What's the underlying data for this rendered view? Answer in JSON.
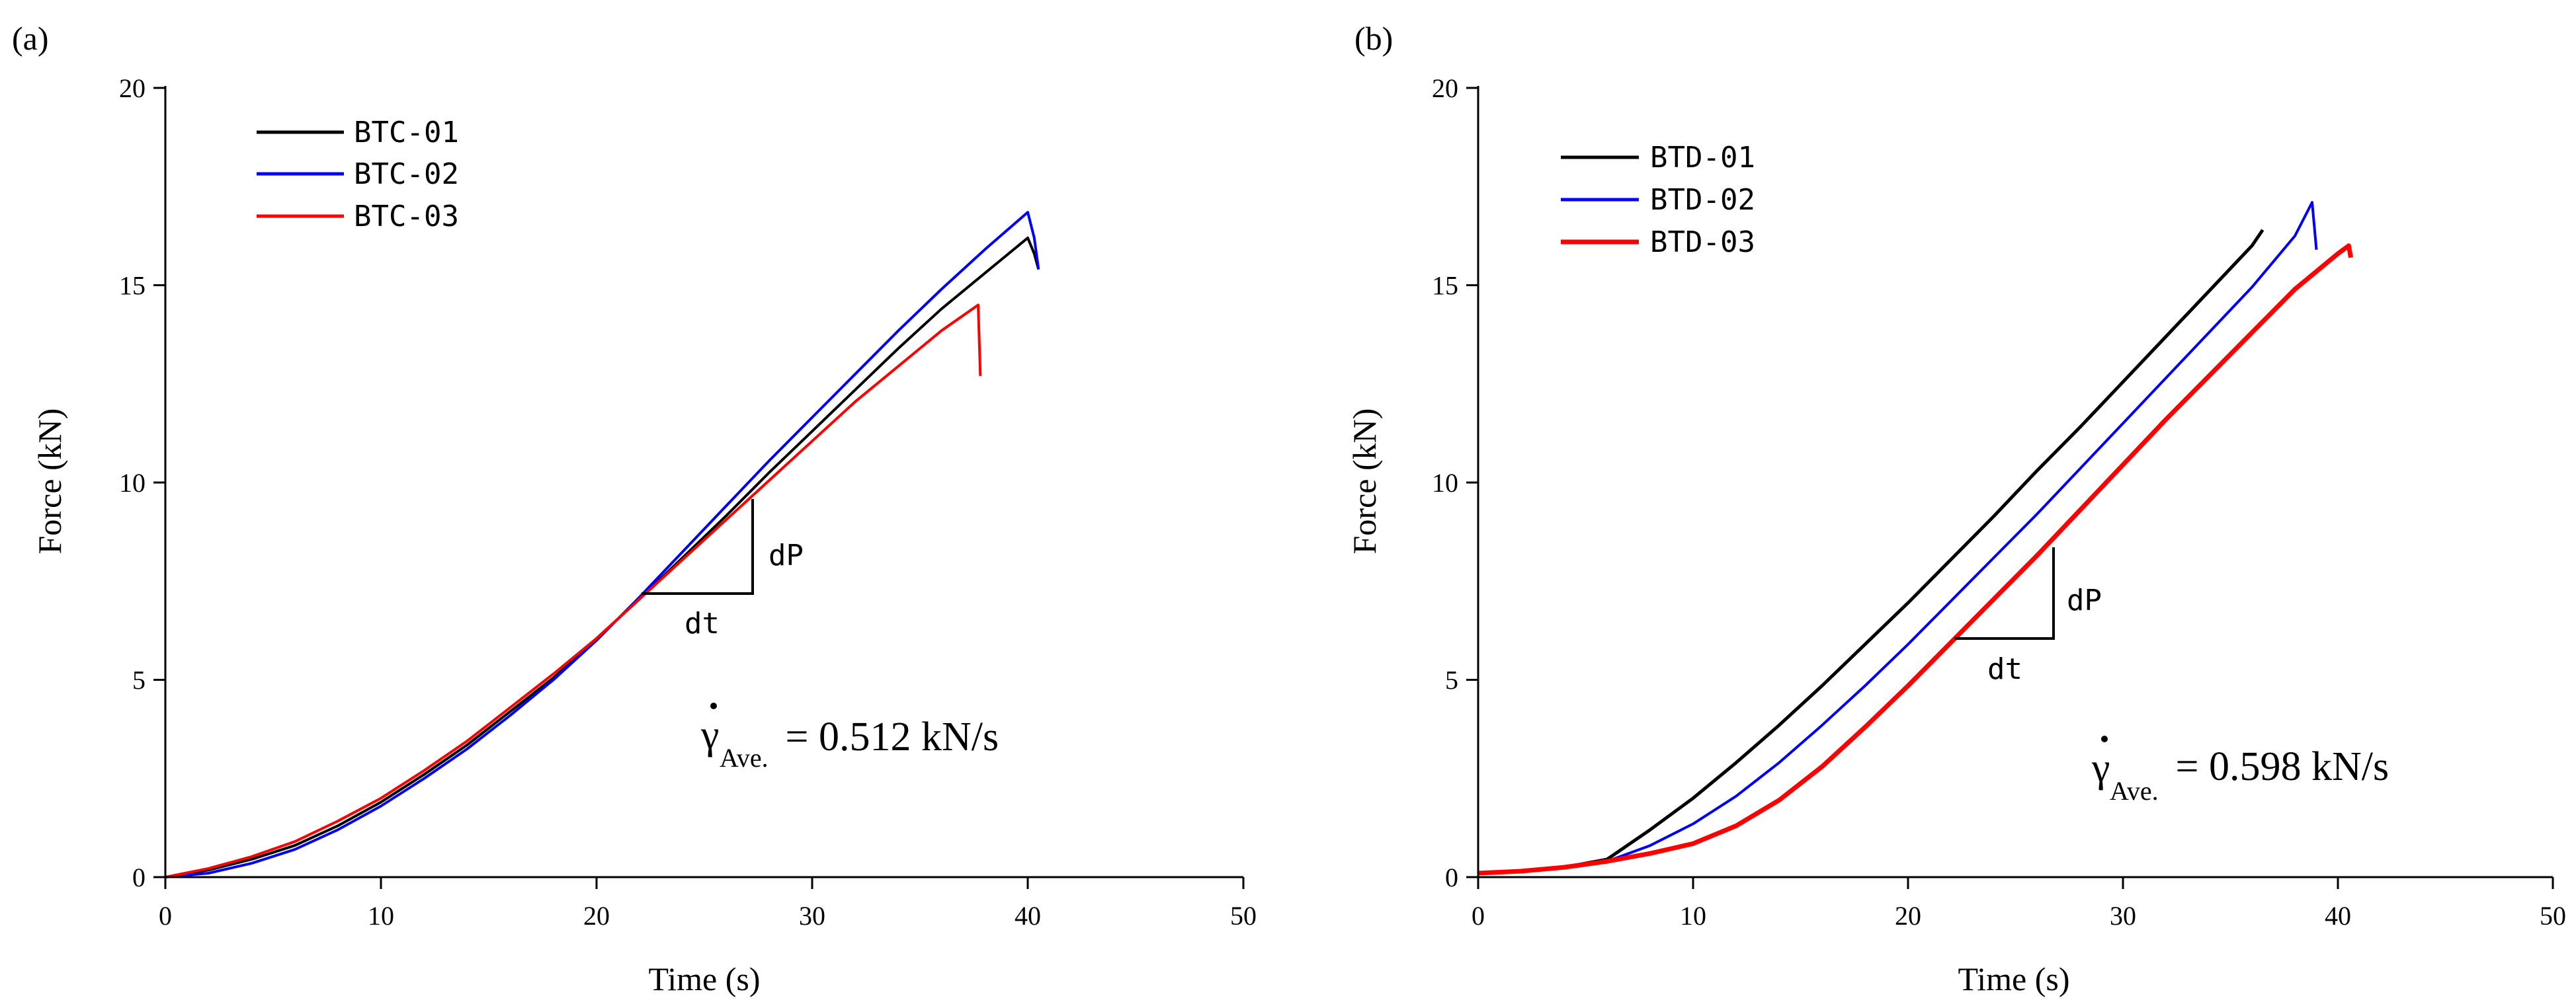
{
  "chart_data": [
    {
      "type": "line",
      "panel_label": "(a)",
      "xlabel": "Time (s)",
      "ylabel": "Force (kN)",
      "xlim": [
        0,
        50
      ],
      "ylim": [
        0,
        20
      ],
      "xticks": [
        0,
        10,
        20,
        30,
        40,
        50
      ],
      "yticks": [
        0,
        5,
        10,
        15,
        20
      ],
      "grid": false,
      "legend_position": "top-left",
      "series": [
        {
          "name": "BTC-01",
          "color": "#000000",
          "x": [
            0,
            2,
            4,
            6,
            8,
            10,
            12,
            14,
            16,
            18,
            20,
            22,
            24,
            26,
            28,
            30,
            32,
            34,
            36,
            38,
            40,
            40.3,
            40.5
          ],
          "y": [
            0,
            0.18,
            0.45,
            0.8,
            1.3,
            1.9,
            2.6,
            3.35,
            4.2,
            5.05,
            6.05,
            7.05,
            8.1,
            9.15,
            10.25,
            11.3,
            12.35,
            13.4,
            14.4,
            15.3,
            16.2,
            15.8,
            15.4
          ]
        },
        {
          "name": "BTC-02",
          "color": "#0000ff",
          "x": [
            0,
            2,
            4,
            6,
            8,
            10,
            12,
            14,
            16,
            18,
            20,
            22,
            24,
            26,
            28,
            30,
            32,
            34,
            36,
            38,
            40,
            40.3,
            40.5
          ],
          "y": [
            0,
            0.1,
            0.35,
            0.7,
            1.2,
            1.8,
            2.5,
            3.25,
            4.1,
            5.0,
            6.0,
            7.1,
            8.25,
            9.4,
            10.55,
            11.65,
            12.75,
            13.85,
            14.9,
            15.9,
            16.85,
            16.2,
            15.4
          ]
        },
        {
          "name": "BTC-03",
          "color": "#ff0000",
          "x": [
            0,
            2,
            4,
            6,
            8,
            10,
            12,
            14,
            16,
            18,
            20,
            22,
            24,
            26,
            28,
            30,
            32,
            34,
            36,
            37.7,
            37.8
          ],
          "y": [
            0,
            0.22,
            0.52,
            0.9,
            1.42,
            2.0,
            2.7,
            3.45,
            4.3,
            5.15,
            6.05,
            7.05,
            8.05,
            9.05,
            10.05,
            11.05,
            12.05,
            12.95,
            13.85,
            14.5,
            12.7
          ]
        }
      ],
      "annotation": {
        "dp_label": "dP",
        "dt_label": "dt"
      },
      "rate": {
        "symbol": "γ",
        "subscript": "Ave.",
        "value_text": " = 0.512 kN/s"
      }
    },
    {
      "type": "line",
      "panel_label": "(b)",
      "xlabel": "Time (s)",
      "ylabel": "Force (kN)",
      "xlim": [
        0,
        50
      ],
      "ylim": [
        0,
        20
      ],
      "xticks": [
        0,
        10,
        20,
        30,
        40,
        50
      ],
      "yticks": [
        0,
        5,
        10,
        15,
        20
      ],
      "grid": false,
      "legend_position": "top-left",
      "series": [
        {
          "name": "BTD-01",
          "color": "#000000",
          "x": [
            0,
            2,
            4,
            6,
            8,
            10,
            12,
            14,
            16,
            18,
            20,
            22,
            24,
            26,
            28,
            30,
            32,
            34,
            36,
            36.5
          ],
          "y": [
            0.1,
            0.15,
            0.25,
            0.45,
            1.2,
            2.0,
            2.9,
            3.85,
            4.85,
            5.9,
            6.95,
            8.05,
            9.15,
            10.3,
            11.4,
            12.55,
            13.7,
            14.85,
            16.0,
            16.4
          ]
        },
        {
          "name": "BTD-02",
          "color": "#0000ff",
          "x": [
            0,
            2,
            4,
            6,
            8,
            10,
            12,
            14,
            16,
            18,
            20,
            22,
            24,
            26,
            28,
            30,
            32,
            34,
            36,
            38,
            38.8,
            39.0
          ],
          "y": [
            0.1,
            0.15,
            0.25,
            0.4,
            0.8,
            1.35,
            2.05,
            2.9,
            3.85,
            4.85,
            5.9,
            7.0,
            8.1,
            9.2,
            10.35,
            11.5,
            12.65,
            13.8,
            14.95,
            16.25,
            17.1,
            15.9
          ]
        },
        {
          "name": "BTD-03",
          "color": "#ff0000",
          "x": [
            0,
            2,
            4,
            6,
            8,
            10,
            12,
            14,
            16,
            18,
            20,
            22,
            24,
            26,
            28,
            30,
            32,
            34,
            36,
            38,
            40,
            40.5,
            40.6
          ],
          "y": [
            0.1,
            0.15,
            0.25,
            0.4,
            0.6,
            0.85,
            1.3,
            1.95,
            2.8,
            3.8,
            4.85,
            5.95,
            7.05,
            8.15,
            9.3,
            10.45,
            11.6,
            12.7,
            13.8,
            14.9,
            15.8,
            16.0,
            15.7
          ]
        }
      ],
      "annotation": {
        "dp_label": "dP",
        "dt_label": "dt"
      },
      "rate": {
        "symbol": "γ",
        "subscript": "Ave.",
        "value_text": " = 0.598 kN/s"
      }
    }
  ]
}
